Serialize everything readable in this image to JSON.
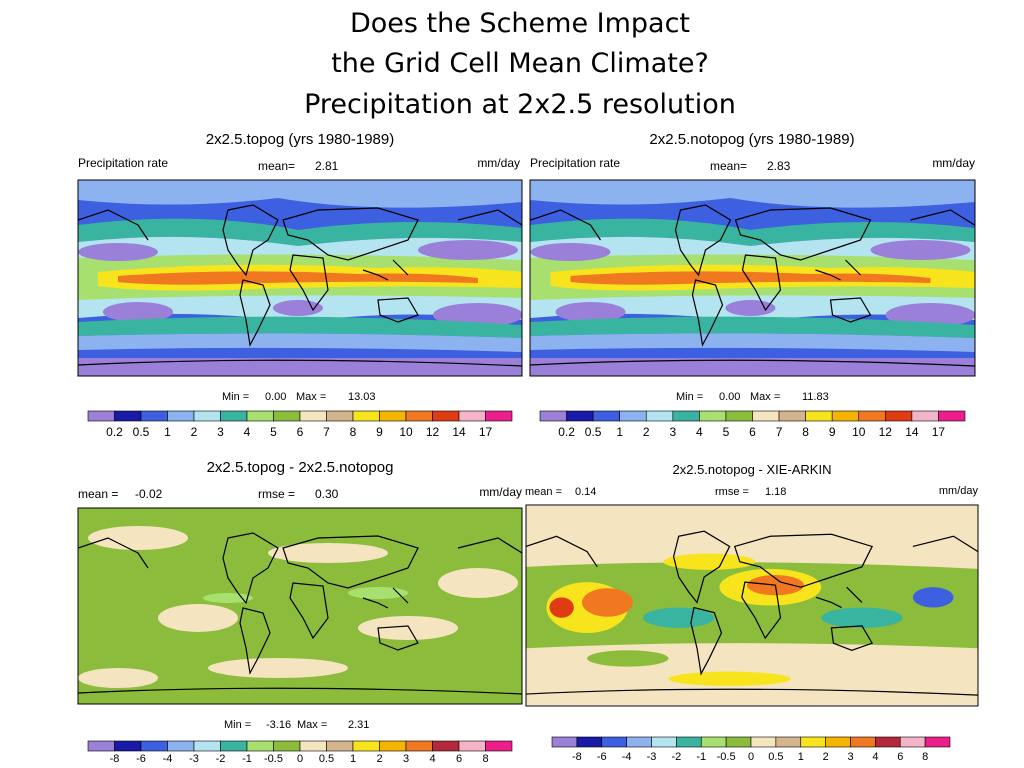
{
  "title": [
    "Does the Scheme Impact",
    "the Grid Cell Mean Climate?",
    "Precipitation at 2x2.5 resolution"
  ],
  "panels": [
    {
      "title": "2x2.5.topog (yrs 1980-1989)",
      "field": "Precipitation rate",
      "mean_label": "mean=",
      "mean": "2.81",
      "units": "mm/day",
      "min_label": "Min =",
      "min": "0.00",
      "max_label": "Max =",
      "max": "13.03"
    },
    {
      "title": "2x2.5.notopog (yrs 1980-1989)",
      "field": "Precipitation rate",
      "mean_label": "mean=",
      "mean": "2.83",
      "units": "mm/day",
      "min_label": "Min =",
      "min": "0.00",
      "max_label": "Max =",
      "max": "11.83"
    },
    {
      "title": "2x2.5.topog - 2x2.5.notopog",
      "mean_label": "mean =",
      "mean": "-0.02",
      "rmse_label": "rmse =",
      "rmse": "0.30",
      "units": "mm/day",
      "min_label": "Min =",
      "min": "-3.16",
      "max_label": "Max =",
      "max": "2.31"
    },
    {
      "title": "2x2.5.notopog - XIE-ARKIN",
      "mean_label": "mean =",
      "mean": "0.14",
      "rmse_label": "rmse =",
      "rmse": "1.18",
      "units": "mm/day"
    }
  ],
  "colorbars": [
    {
      "labels": [
        "0.2",
        "0.5",
        "1",
        "2",
        "3",
        "4",
        "5",
        "6",
        "7",
        "8",
        "9",
        "10",
        "12",
        "14",
        "17"
      ],
      "colors": [
        "#9a80d8",
        "#1a1aa8",
        "#3c60e0",
        "#8cb2f0",
        "#b4e4f0",
        "#38b4a0",
        "#a8e070",
        "#8cbc3c",
        "#f4e4c0",
        "#d4b48c",
        "#f8e41c",
        "#f4b400",
        "#f07820",
        "#e03c14",
        "#f4b4c8",
        "#ec1e8c"
      ]
    },
    {
      "labels": [
        "0.2",
        "0.5",
        "1",
        "2",
        "3",
        "4",
        "5",
        "6",
        "7",
        "8",
        "9",
        "10",
        "12",
        "14",
        "17"
      ],
      "colors": [
        "#9a80d8",
        "#1a1aa8",
        "#3c60e0",
        "#8cb2f0",
        "#b4e4f0",
        "#38b4a0",
        "#a8e070",
        "#8cbc3c",
        "#f4e4c0",
        "#d4b48c",
        "#f8e41c",
        "#f4b400",
        "#f07820",
        "#e03c14",
        "#f4b4c8",
        "#ec1e8c"
      ]
    },
    {
      "labels": [
        "-8",
        "-6",
        "-4",
        "-3",
        "-2",
        "-1",
        "-0.5",
        "0",
        "0.5",
        "1",
        "2",
        "3",
        "4",
        "6",
        "8"
      ],
      "colors": [
        "#9a80d8",
        "#1a1aa8",
        "#3c60e0",
        "#8cb2f0",
        "#b4e4f0",
        "#38b4a0",
        "#a8e070",
        "#8cbc3c",
        "#f4e4c0",
        "#d4b48c",
        "#f8e41c",
        "#f4b400",
        "#f07820",
        "#b4283c",
        "#f4b4c8",
        "#ec1e8c"
      ]
    },
    {
      "labels": [
        "-8",
        "-6",
        "-4",
        "-3",
        "-2",
        "-1",
        "-0.5",
        "0",
        "0.5",
        "1",
        "2",
        "3",
        "4",
        "6",
        "8"
      ],
      "colors": [
        "#9a80d8",
        "#1a1aa8",
        "#3c60e0",
        "#8cb2f0",
        "#b4e4f0",
        "#38b4a0",
        "#a8e070",
        "#8cbc3c",
        "#f4e4c0",
        "#d4b48c",
        "#f8e41c",
        "#f4b400",
        "#f07820",
        "#b4283c",
        "#f4b4c8",
        "#ec1e8c"
      ]
    }
  ]
}
